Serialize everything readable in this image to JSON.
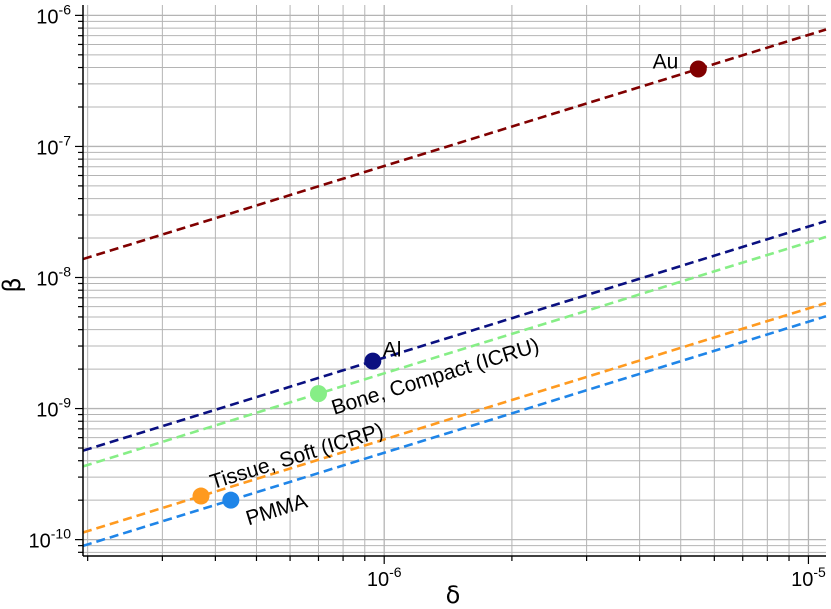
{
  "chart_data": {
    "type": "scatter",
    "title": "",
    "xlabel": "δ",
    "ylabel": "β",
    "x_scale": "log",
    "y_scale": "log",
    "xlim": [
      1.95e-07,
      1.1e-05
    ],
    "ylim": [
      7.5e-11,
      1.2e-06
    ],
    "grid": true,
    "x_ticks": [
      {
        "base": "10",
        "exp": "-6",
        "value": 1e-06
      },
      {
        "base": "10",
        "exp": "-5",
        "value": 1e-05
      }
    ],
    "y_ticks": [
      {
        "base": "10",
        "exp": "-10",
        "value": 1e-10
      },
      {
        "base": "10",
        "exp": "-9",
        "value": 1e-09
      },
      {
        "base": "10",
        "exp": "-8",
        "value": 1e-08
      },
      {
        "base": "10",
        "exp": "-7",
        "value": 1e-07
      },
      {
        "base": "10",
        "exp": "-6",
        "value": 1e-06
      }
    ],
    "series": [
      {
        "name": "Au",
        "x": 5.5e-06,
        "y": 3.9e-07,
        "color": "#800000",
        "line_exponent": 1.0,
        "label_anchor": "end",
        "label_dx": -20,
        "label_dy": -6,
        "label_rotate": false
      },
      {
        "name": "Al",
        "x": 9.4e-07,
        "y": 2.3e-09,
        "color": "#0a1080",
        "line_exponent": 1.0,
        "label_anchor": "start",
        "label_dx": 10,
        "label_dy": -10,
        "label_rotate": false
      },
      {
        "name": "Bone, Compact (ICRU)",
        "x": 7e-07,
        "y": 1.3e-09,
        "color": "#86ee86",
        "line_exponent": 1.0,
        "label_anchor": "start",
        "label_dx": 14,
        "label_dy": 16,
        "label_rotate": true
      },
      {
        "name": "Tissue, Soft (ICRP)",
        "x": 3.7e-07,
        "y": 2.15e-10,
        "color": "#ff9a1f",
        "line_exponent": 1.0,
        "label_anchor": "start",
        "label_dx": 10,
        "label_dy": -12,
        "label_rotate": true
      },
      {
        "name": "PMMA",
        "x": 4.35e-07,
        "y": 2e-10,
        "color": "#1f85e8",
        "line_exponent": 1.0,
        "label_anchor": "start",
        "label_dx": 16,
        "label_dy": 20,
        "label_rotate": true
      }
    ]
  }
}
